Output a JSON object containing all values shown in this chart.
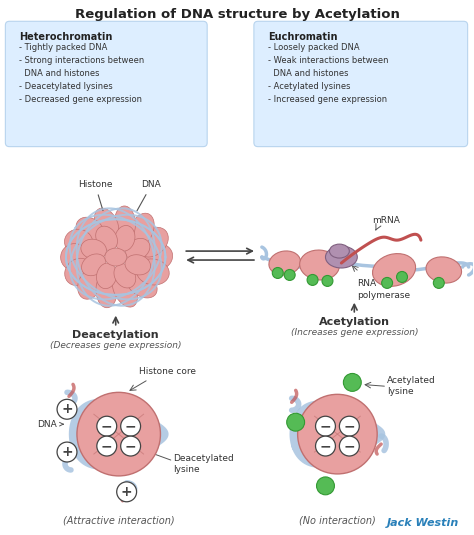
{
  "title": "Regulation of DNA structure by Acetylation",
  "title_fontsize": 9.5,
  "bg_color": "#ffffff",
  "box_color": "#ddeeff",
  "heterochromatin_title": "Heterochromatin",
  "heterochromatin_bullets": [
    "- Tightly packed DNA",
    "- Strong interactions between",
    "  DNA and histones",
    "- Deacetylated lysines",
    "- Decreased gene expression"
  ],
  "euchromatin_title": "Euchromatin",
  "euchromatin_bullets": [
    "- Loosely packed DNA",
    "- Weak interactions between",
    "  DNA and histones",
    "- Acetylated lysines",
    "- Increased gene expression"
  ],
  "histone_color": "#e8a0a0",
  "histone_edge": "#c07070",
  "dna_color": "#a8c4e0",
  "mrna_color": "#c05050",
  "green_color": "#55bb55",
  "green_edge": "#339933",
  "purple_color": "#b090b0",
  "purple_edge": "#806080",
  "deacetylation_label": "Deacetylation",
  "deacetylation_sub": "(Decreases gene expression)",
  "acetylation_label": "Acetylation",
  "acetylation_sub": "(Increases gene expression)",
  "attractive_label": "(Attractive interaction)",
  "no_interaction_label": "(No interaction)",
  "mrna_label": "mRNA",
  "rna_pol_label": "RNA\npolymerase",
  "histone_label": "Histone",
  "dna_label": "DNA",
  "histone_core_label": "Histone core",
  "deacetylated_label": "Deacetylated\nlysine",
  "acetylated_label": "Acetylated\nlysine",
  "author": "Jack Westin",
  "author_color": "#2980b9"
}
